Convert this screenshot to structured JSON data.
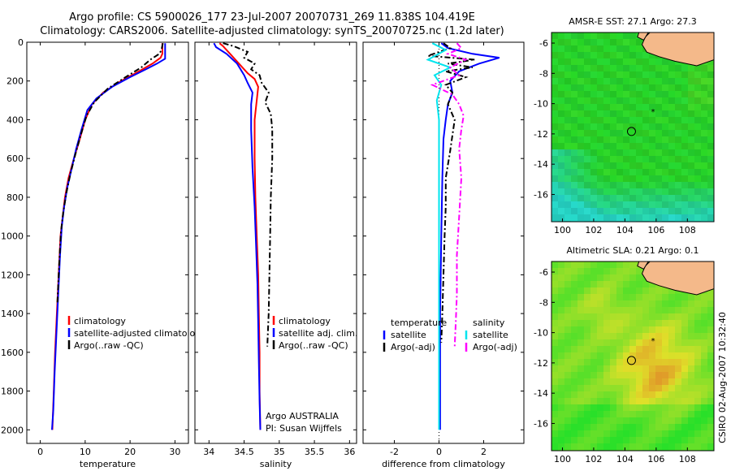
{
  "header": {
    "line1": "Argo profile: CS 5900026_177 23-Jul-2007 20070731_269 11.838S 104.419E",
    "line2": "Climatology: CARS2006. Satellite-adjusted climatology: synTS_20070725.nc (1.2d later)"
  },
  "side_label": "CSIRO 02-Aug-2007 10:32:40",
  "colors": {
    "climatology": "#ff0000",
    "satellite": "#0000ff",
    "argo": "#000000",
    "sal_diff": "#ff00ff",
    "sat_sal_diff": "#00e5ee",
    "land": "#f4b98a"
  },
  "chart_data": [
    {
      "type": "line",
      "id": "temperature",
      "xlabel": "temperature",
      "ylabel": "",
      "xlim": [
        -3,
        33
      ],
      "ylim": [
        2070,
        0
      ],
      "xticks": [
        0,
        10,
        20,
        30
      ],
      "xtick_labels": [
        "0",
        "10",
        "20",
        "30"
      ],
      "yticks": [
        0,
        200,
        400,
        600,
        800,
        1000,
        1200,
        1400,
        1600,
        1800,
        2000
      ],
      "ytick_labels": [
        "0",
        "200",
        "400",
        "600",
        "800",
        "1000",
        "1200",
        "1400",
        "1600",
        "1800",
        "2000"
      ],
      "legend": [
        "climatology",
        "satellite-adjusted climatology",
        "Argo(..raw -QC)"
      ],
      "series": [
        {
          "name": "climatology",
          "style": "solid",
          "color": "#ff0000",
          "points": [
            [
              27.2,
              5
            ],
            [
              27.2,
              60
            ],
            [
              26.8,
              80
            ],
            [
              25,
              110
            ],
            [
              22,
              150
            ],
            [
              18,
              200
            ],
            [
              14,
              260
            ],
            [
              11.5,
              320
            ],
            [
              10,
              400
            ],
            [
              8.8,
              500
            ],
            [
              7.5,
              600
            ],
            [
              6.3,
              700
            ],
            [
              5.5,
              800
            ],
            [
              5,
              900
            ],
            [
              4.5,
              1000
            ],
            [
              4.1,
              1200
            ],
            [
              3.7,
              1400
            ],
            [
              3.3,
              1600
            ],
            [
              3,
              1800
            ],
            [
              2.7,
              2000
            ]
          ]
        },
        {
          "name": "satellite-adjusted climatology",
          "style": "solid",
          "color": "#0000ff",
          "points": [
            [
              27.8,
              5
            ],
            [
              27.8,
              85
            ],
            [
              26,
              110
            ],
            [
              23.5,
              140
            ],
            [
              20,
              180
            ],
            [
              16,
              230
            ],
            [
              12.5,
              290
            ],
            [
              10.5,
              350
            ],
            [
              9.2,
              450
            ],
            [
              8,
              550
            ],
            [
              7,
              650
            ],
            [
              6,
              750
            ],
            [
              5.3,
              850
            ],
            [
              4.8,
              950
            ],
            [
              4.4,
              1100
            ],
            [
              4,
              1300
            ],
            [
              3.6,
              1500
            ],
            [
              3.2,
              1700
            ],
            [
              2.9,
              1900
            ],
            [
              2.6,
              2000
            ]
          ]
        },
        {
          "name": "Argo(..raw -QC)",
          "style": "dashdot",
          "color": "#000000",
          "points": [
            [
              27.3,
              5
            ],
            [
              27,
              40
            ],
            [
              26.5,
              60
            ],
            [
              24.5,
              90
            ],
            [
              22.5,
              130
            ],
            [
              19,
              180
            ],
            [
              15,
              240
            ],
            [
              12,
              310
            ],
            [
              10.3,
              380
            ],
            [
              9,
              480
            ],
            [
              7.8,
              580
            ],
            [
              6.7,
              680
            ],
            [
              5.8,
              780
            ],
            [
              5.1,
              880
            ],
            [
              4.6,
              980
            ],
            [
              4.2,
              1150
            ],
            [
              3.8,
              1350
            ]
          ]
        }
      ]
    },
    {
      "type": "line",
      "id": "salinity",
      "xlabel": "salinity",
      "xlim": [
        33.8,
        36.1
      ],
      "ylim": [
        2070,
        0
      ],
      "xticks": [
        34,
        34.5,
        35,
        35.5,
        36
      ],
      "xtick_labels": [
        "34",
        "34.5",
        "35",
        "35.5",
        "36"
      ],
      "legend": [
        "climatology",
        "satellite adj. clim.",
        "Argo(..raw -QC)"
      ],
      "annotation": [
        "Argo AUSTRALIA",
        "PI: Susan Wijffels"
      ],
      "series": [
        {
          "name": "climatology",
          "style": "solid",
          "color": "#ff0000",
          "points": [
            [
              34.15,
              5
            ],
            [
              34.2,
              20
            ],
            [
              34.3,
              60
            ],
            [
              34.45,
              120
            ],
            [
              34.55,
              160
            ],
            [
              34.65,
              190
            ],
            [
              34.7,
              230
            ],
            [
              34.68,
              300
            ],
            [
              34.65,
              400
            ],
            [
              34.65,
              600
            ],
            [
              34.66,
              800
            ],
            [
              34.68,
              1000
            ],
            [
              34.7,
              1200
            ],
            [
              34.71,
              1400
            ],
            [
              34.72,
              1600
            ],
            [
              34.72,
              1800
            ],
            [
              34.73,
              2000
            ]
          ]
        },
        {
          "name": "satellite adj. clim.",
          "style": "solid",
          "color": "#0000ff",
          "points": [
            [
              34.07,
              5
            ],
            [
              34.1,
              25
            ],
            [
              34.25,
              60
            ],
            [
              34.4,
              110
            ],
            [
              34.5,
              170
            ],
            [
              34.55,
              210
            ],
            [
              34.62,
              260
            ],
            [
              34.6,
              320
            ],
            [
              34.6,
              450
            ],
            [
              34.62,
              650
            ],
            [
              34.65,
              850
            ],
            [
              34.67,
              1050
            ],
            [
              34.69,
              1250
            ],
            [
              34.7,
              1450
            ],
            [
              34.71,
              1650
            ],
            [
              34.72,
              1850
            ],
            [
              34.73,
              2000
            ]
          ]
        },
        {
          "name": "Argo(..raw -QC)",
          "style": "dashdot",
          "color": "#000000",
          "points": [
            [
              34.2,
              5
            ],
            [
              34.35,
              20
            ],
            [
              34.55,
              50
            ],
            [
              34.5,
              80
            ],
            [
              34.65,
              110
            ],
            [
              34.6,
              140
            ],
            [
              34.72,
              170
            ],
            [
              34.75,
              210
            ],
            [
              34.85,
              260
            ],
            [
              34.8,
              310
            ],
            [
              34.88,
              370
            ],
            [
              34.9,
              450
            ],
            [
              34.9,
              600
            ],
            [
              34.88,
              800
            ],
            [
              34.87,
              1000
            ],
            [
              34.86,
              1200
            ],
            [
              34.85,
              1400
            ],
            [
              34.83,
              1570
            ]
          ]
        }
      ]
    },
    {
      "type": "line",
      "id": "difference",
      "xlabel": "difference from climatology",
      "xlim": [
        -3.4,
        3.8
      ],
      "ylim": [
        2070,
        0
      ],
      "xticks": [
        -2,
        0,
        2
      ],
      "xtick_labels": [
        "-2",
        "0",
        "2"
      ],
      "legend_left_title": "temperature",
      "legend_right_title": "salinity",
      "legend_left": [
        "satellite",
        "Argo(-adj)"
      ],
      "legend_right": [
        "satellite",
        "Argo(-adj)"
      ],
      "series": [
        {
          "name": "temperature satellite",
          "style": "solid",
          "color": "#0000ff",
          "points": [
            [
              0.1,
              5
            ],
            [
              0.4,
              30
            ],
            [
              1.5,
              60
            ],
            [
              2.7,
              80
            ],
            [
              1.8,
              110
            ],
            [
              0.9,
              150
            ],
            [
              0.5,
              200
            ],
            [
              0.6,
              260
            ],
            [
              0.4,
              320
            ],
            [
              0.3,
              400
            ],
            [
              0.2,
              500
            ],
            [
              0.15,
              700
            ],
            [
              0.1,
              1000
            ],
            [
              0.05,
              1400
            ],
            [
              0.05,
              1800
            ],
            [
              0.05,
              2000
            ]
          ]
        },
        {
          "name": "temperature Argo(-adj)",
          "style": "dashdot",
          "color": "#000000",
          "points": [
            [
              0.2,
              5
            ],
            [
              0.5,
              30
            ],
            [
              -0.5,
              70
            ],
            [
              1.6,
              90
            ],
            [
              0.4,
              110
            ],
            [
              1.5,
              130
            ],
            [
              0.3,
              150
            ],
            [
              1.2,
              180
            ],
            [
              0.3,
              220
            ],
            [
              0.6,
              260
            ],
            [
              0.4,
              320
            ],
            [
              0.7,
              400
            ],
            [
              0.6,
              480
            ],
            [
              0.5,
              560
            ],
            [
              0.3,
              700
            ],
            [
              0.3,
              850
            ],
            [
              0.25,
              1000
            ],
            [
              0.2,
              1200
            ],
            [
              0.15,
              1400
            ],
            [
              0.1,
              1550
            ]
          ]
        },
        {
          "name": "salinity satellite",
          "style": "solid",
          "color": "#00e5ee",
          "points": [
            [
              -0.3,
              5
            ],
            [
              0.3,
              40
            ],
            [
              -0.5,
              90
            ],
            [
              0.5,
              130
            ],
            [
              -0.2,
              170
            ],
            [
              0.1,
              220
            ],
            [
              -0.1,
              300
            ],
            [
              0,
              400
            ],
            [
              0,
              600
            ],
            [
              0,
              900
            ],
            [
              0,
              1300
            ],
            [
              0,
              1700
            ],
            [
              0,
              2000
            ]
          ]
        },
        {
          "name": "salinity Argo(-adj)",
          "style": "dashdot",
          "color": "#ff00ff",
          "points": [
            [
              0.8,
              5
            ],
            [
              1,
              30
            ],
            [
              0.4,
              60
            ],
            [
              1.2,
              90
            ],
            [
              0.5,
              130
            ],
            [
              0.9,
              170
            ],
            [
              -0.3,
              220
            ],
            [
              0.6,
              270
            ],
            [
              0.9,
              320
            ],
            [
              1.1,
              380
            ],
            [
              1,
              450
            ],
            [
              0.9,
              550
            ],
            [
              1,
              700
            ],
            [
              0.9,
              900
            ],
            [
              0.8,
              1100
            ],
            [
              0.8,
              1300
            ],
            [
              0.75,
              1450
            ],
            [
              0.7,
              1570
            ]
          ]
        }
      ]
    },
    {
      "type": "heatmap",
      "id": "amsr-sst",
      "title": "AMSR-E SST: 27.1  Argo: 27.3",
      "xlim": [
        99.3,
        109.7
      ],
      "ylim": [
        -17.8,
        -5.3
      ],
      "xticks": [
        100,
        102,
        104,
        106,
        108
      ],
      "xtick_labels": [
        "100",
        "102",
        "104",
        "106",
        "108"
      ],
      "yticks": [
        -6,
        -8,
        -10,
        -12,
        -14,
        -16
      ],
      "ytick_labels": [
        "-6",
        "-8",
        "-10",
        "-12",
        "-14",
        "-16"
      ],
      "profile_marker": [
        104.42,
        -11.84
      ],
      "star_marker": [
        105.8,
        -10.5
      ]
    },
    {
      "type": "heatmap",
      "id": "altimetric-sla",
      "title": "Altimetric SLA: 0.21  Argo: 0.1",
      "xlim": [
        99.3,
        109.7
      ],
      "ylim": [
        -17.8,
        -5.3
      ],
      "xticks": [
        100,
        102,
        104,
        106,
        108
      ],
      "xtick_labels": [
        "100",
        "102",
        "104",
        "106",
        "108"
      ],
      "yticks": [
        -6,
        -8,
        -10,
        -12,
        -14,
        -16
      ],
      "ytick_labels": [
        "-6",
        "-8",
        "-10",
        "-12",
        "-14",
        "-16"
      ],
      "profile_marker": [
        104.42,
        -11.84
      ],
      "star_marker": [
        105.8,
        -10.5
      ]
    }
  ]
}
